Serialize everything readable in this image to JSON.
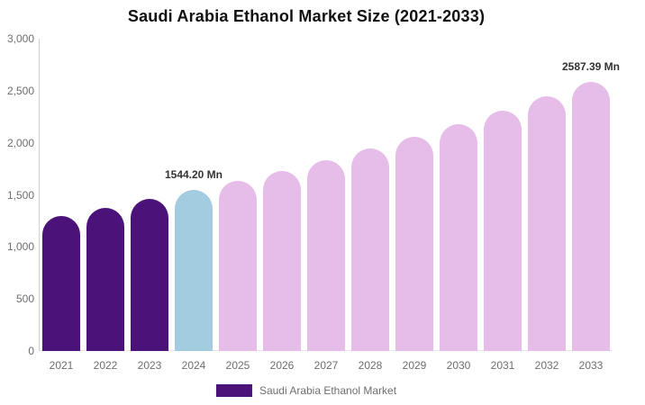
{
  "header": {
    "title": "Saudi Arabia Ethanol Market Size (2021-2033)"
  },
  "chart_data": {
    "type": "bar",
    "title": "Saudi Arabia Ethanol Market Size (2021-2033)",
    "categories": [
      "2021",
      "2022",
      "2023",
      "2024",
      "2025",
      "2026",
      "2027",
      "2028",
      "2029",
      "2030",
      "2031",
      "2032",
      "2033"
    ],
    "values": [
      1300,
      1377,
      1458,
      1544.2,
      1635,
      1732,
      1834,
      1942,
      2057,
      2178,
      2307,
      2443,
      2587.39
    ],
    "unit": "Mn",
    "bar_colors": [
      "#4B1379",
      "#4B1379",
      "#4B1379",
      "#A3CCE0",
      "#E6BCE9",
      "#E6BCE9",
      "#E6BCE9",
      "#E6BCE9",
      "#E6BCE9",
      "#E6BCE9",
      "#E6BCE9",
      "#E6BCE9",
      "#E6BCE9"
    ],
    "point_labels": [
      {
        "index": 3,
        "text": "1544.20 Mn"
      },
      {
        "index": 12,
        "text": "2587.39 Mn"
      }
    ],
    "xlabel": "",
    "ylabel": "",
    "ylim": [
      0,
      3000
    ],
    "yticks": [
      {
        "value": 3000,
        "label": "3,000"
      },
      {
        "value": 2500,
        "label": "2,500"
      },
      {
        "value": 2000,
        "label": "2,000"
      },
      {
        "value": 1500,
        "label": "1,500"
      },
      {
        "value": 1000,
        "label": "1,000"
      },
      {
        "value": 500,
        "label": "500"
      },
      {
        "value": 0,
        "label": "0"
      }
    ],
    "grid": false,
    "legend_position": "bottom"
  },
  "legend": {
    "label": "Saudi Arabia Ethanol Market",
    "swatch_color": "#4B1379"
  },
  "colors": {
    "purple": "#4B1379",
    "blue": "#A3CCE0",
    "pink": "#E6BCE9",
    "axis_line": "#cfcfcf",
    "baseline": "#e6e6e6",
    "tick_text": "#6e6e6e",
    "value_label_text": "#333333",
    "title_text": "#111111"
  }
}
